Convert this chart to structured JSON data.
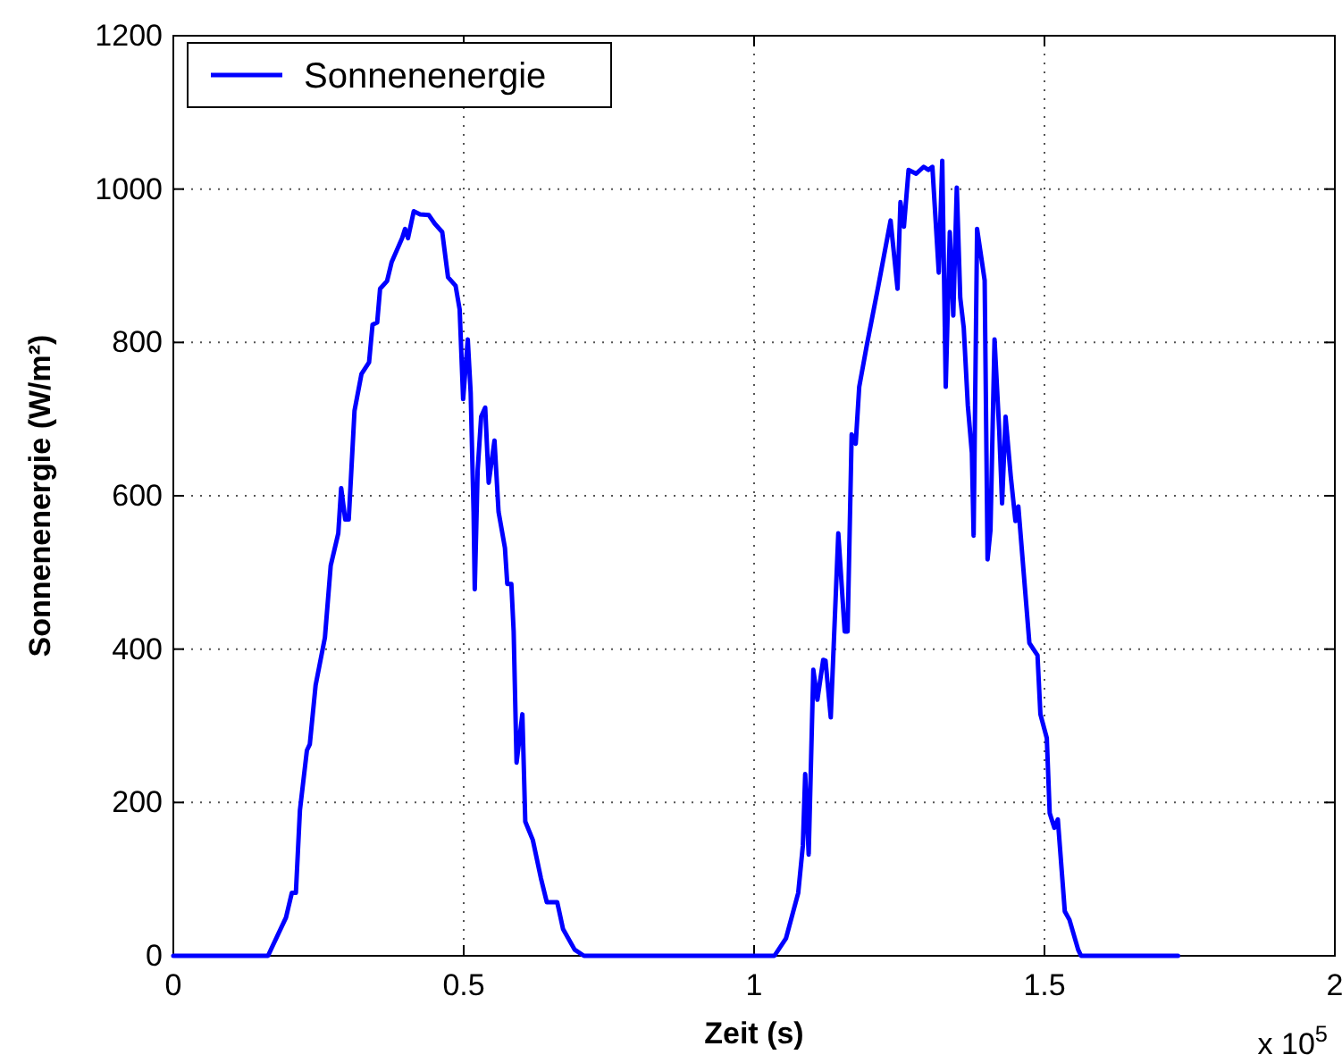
{
  "chart_data": {
    "type": "line",
    "xlabel": "Zeit (s)",
    "ylabel": "Sonnenenergie (W/m²)",
    "annotations": [
      "x 10$^{5}$"
    ],
    "xlim": [
      0,
      2
    ],
    "xticks": [
      0,
      0.5,
      1,
      1.5,
      2
    ],
    "ylim": [
      0,
      1200
    ],
    "yticks": [
      0,
      200,
      400,
      600,
      800,
      1000,
      1200
    ],
    "grid": true,
    "legend": "top left",
    "line_style": "solid",
    "marker": "none",
    "series": [
      {
        "name": "Sonnenenergie",
        "color": "#0000ff",
        "x": [
          0,
          0.163,
          0.194,
          0.204,
          0.211,
          0.218,
          0.23,
          0.235,
          0.245,
          0.261,
          0.271,
          0.284,
          0.289,
          0.296,
          0.302,
          0.312,
          0.324,
          0.337,
          0.343,
          0.351,
          0.356,
          0.368,
          0.376,
          0.394,
          0.399,
          0.404,
          0.414,
          0.425,
          0.44,
          0.45,
          0.463,
          0.473,
          0.486,
          0.493,
          0.499,
          0.507,
          0.512,
          0.517,
          0.519,
          0.524,
          0.53,
          0.537,
          0.543,
          0.553,
          0.56,
          0.571,
          0.575,
          0.582,
          0.586,
          0.591,
          0.601,
          0.606,
          0.619,
          0.633,
          0.643,
          0.661,
          0.671,
          0.691,
          0.707,
          1.035,
          1.055,
          1.076,
          1.084,
          1.088,
          1.094,
          1.102,
          1.109,
          1.119,
          1.123,
          1.132,
          1.145,
          1.156,
          1.161,
          1.168,
          1.175,
          1.181,
          1.194,
          1.214,
          1.235,
          1.247,
          1.252,
          1.258,
          1.266,
          1.279,
          1.292,
          1.3,
          1.307,
          1.318,
          1.324,
          1.33,
          1.337,
          1.343,
          1.349,
          1.355,
          1.361,
          1.368,
          1.375,
          1.378,
          1.384,
          1.397,
          1.402,
          1.407,
          1.414,
          1.422,
          1.427,
          1.433,
          1.442,
          1.45,
          1.455,
          1.474,
          1.488,
          1.493,
          1.504,
          1.509,
          1.517,
          1.523,
          1.535,
          1.543,
          1.558,
          1.563,
          1.73
        ],
        "values": [
          0,
          0,
          50,
          82,
          82,
          190,
          268,
          276,
          353,
          415,
          509,
          551,
          610,
          569,
          569,
          711,
          759,
          774,
          823,
          826,
          870,
          880,
          905,
          936,
          948,
          936,
          971,
          967,
          966,
          955,
          944,
          885,
          874,
          843,
          726,
          804,
          734,
          579,
          478,
          633,
          703,
          715,
          617,
          672,
          579,
          532,
          485,
          485,
          423,
          252,
          315,
          175,
          151,
          101,
          70,
          70,
          35,
          8,
          0,
          0,
          23,
          82,
          144,
          237,
          132,
          373,
          334,
          386,
          385,
          311,
          551,
          423,
          423,
          680,
          668,
          742,
          796,
          874,
          959,
          870,
          983,
          951,
          1025,
          1020,
          1029,
          1025,
          1029,
          891,
          1037,
          742,
          944,
          835,
          1002,
          858,
          819,
          718,
          656,
          548,
          948,
          881,
          517,
          555,
          804,
          687,
          590,
          703,
          625,
          567,
          586,
          408,
          392,
          315,
          284,
          186,
          167,
          178,
          58,
          47,
          8,
          0,
          0
        ]
      }
    ]
  }
}
